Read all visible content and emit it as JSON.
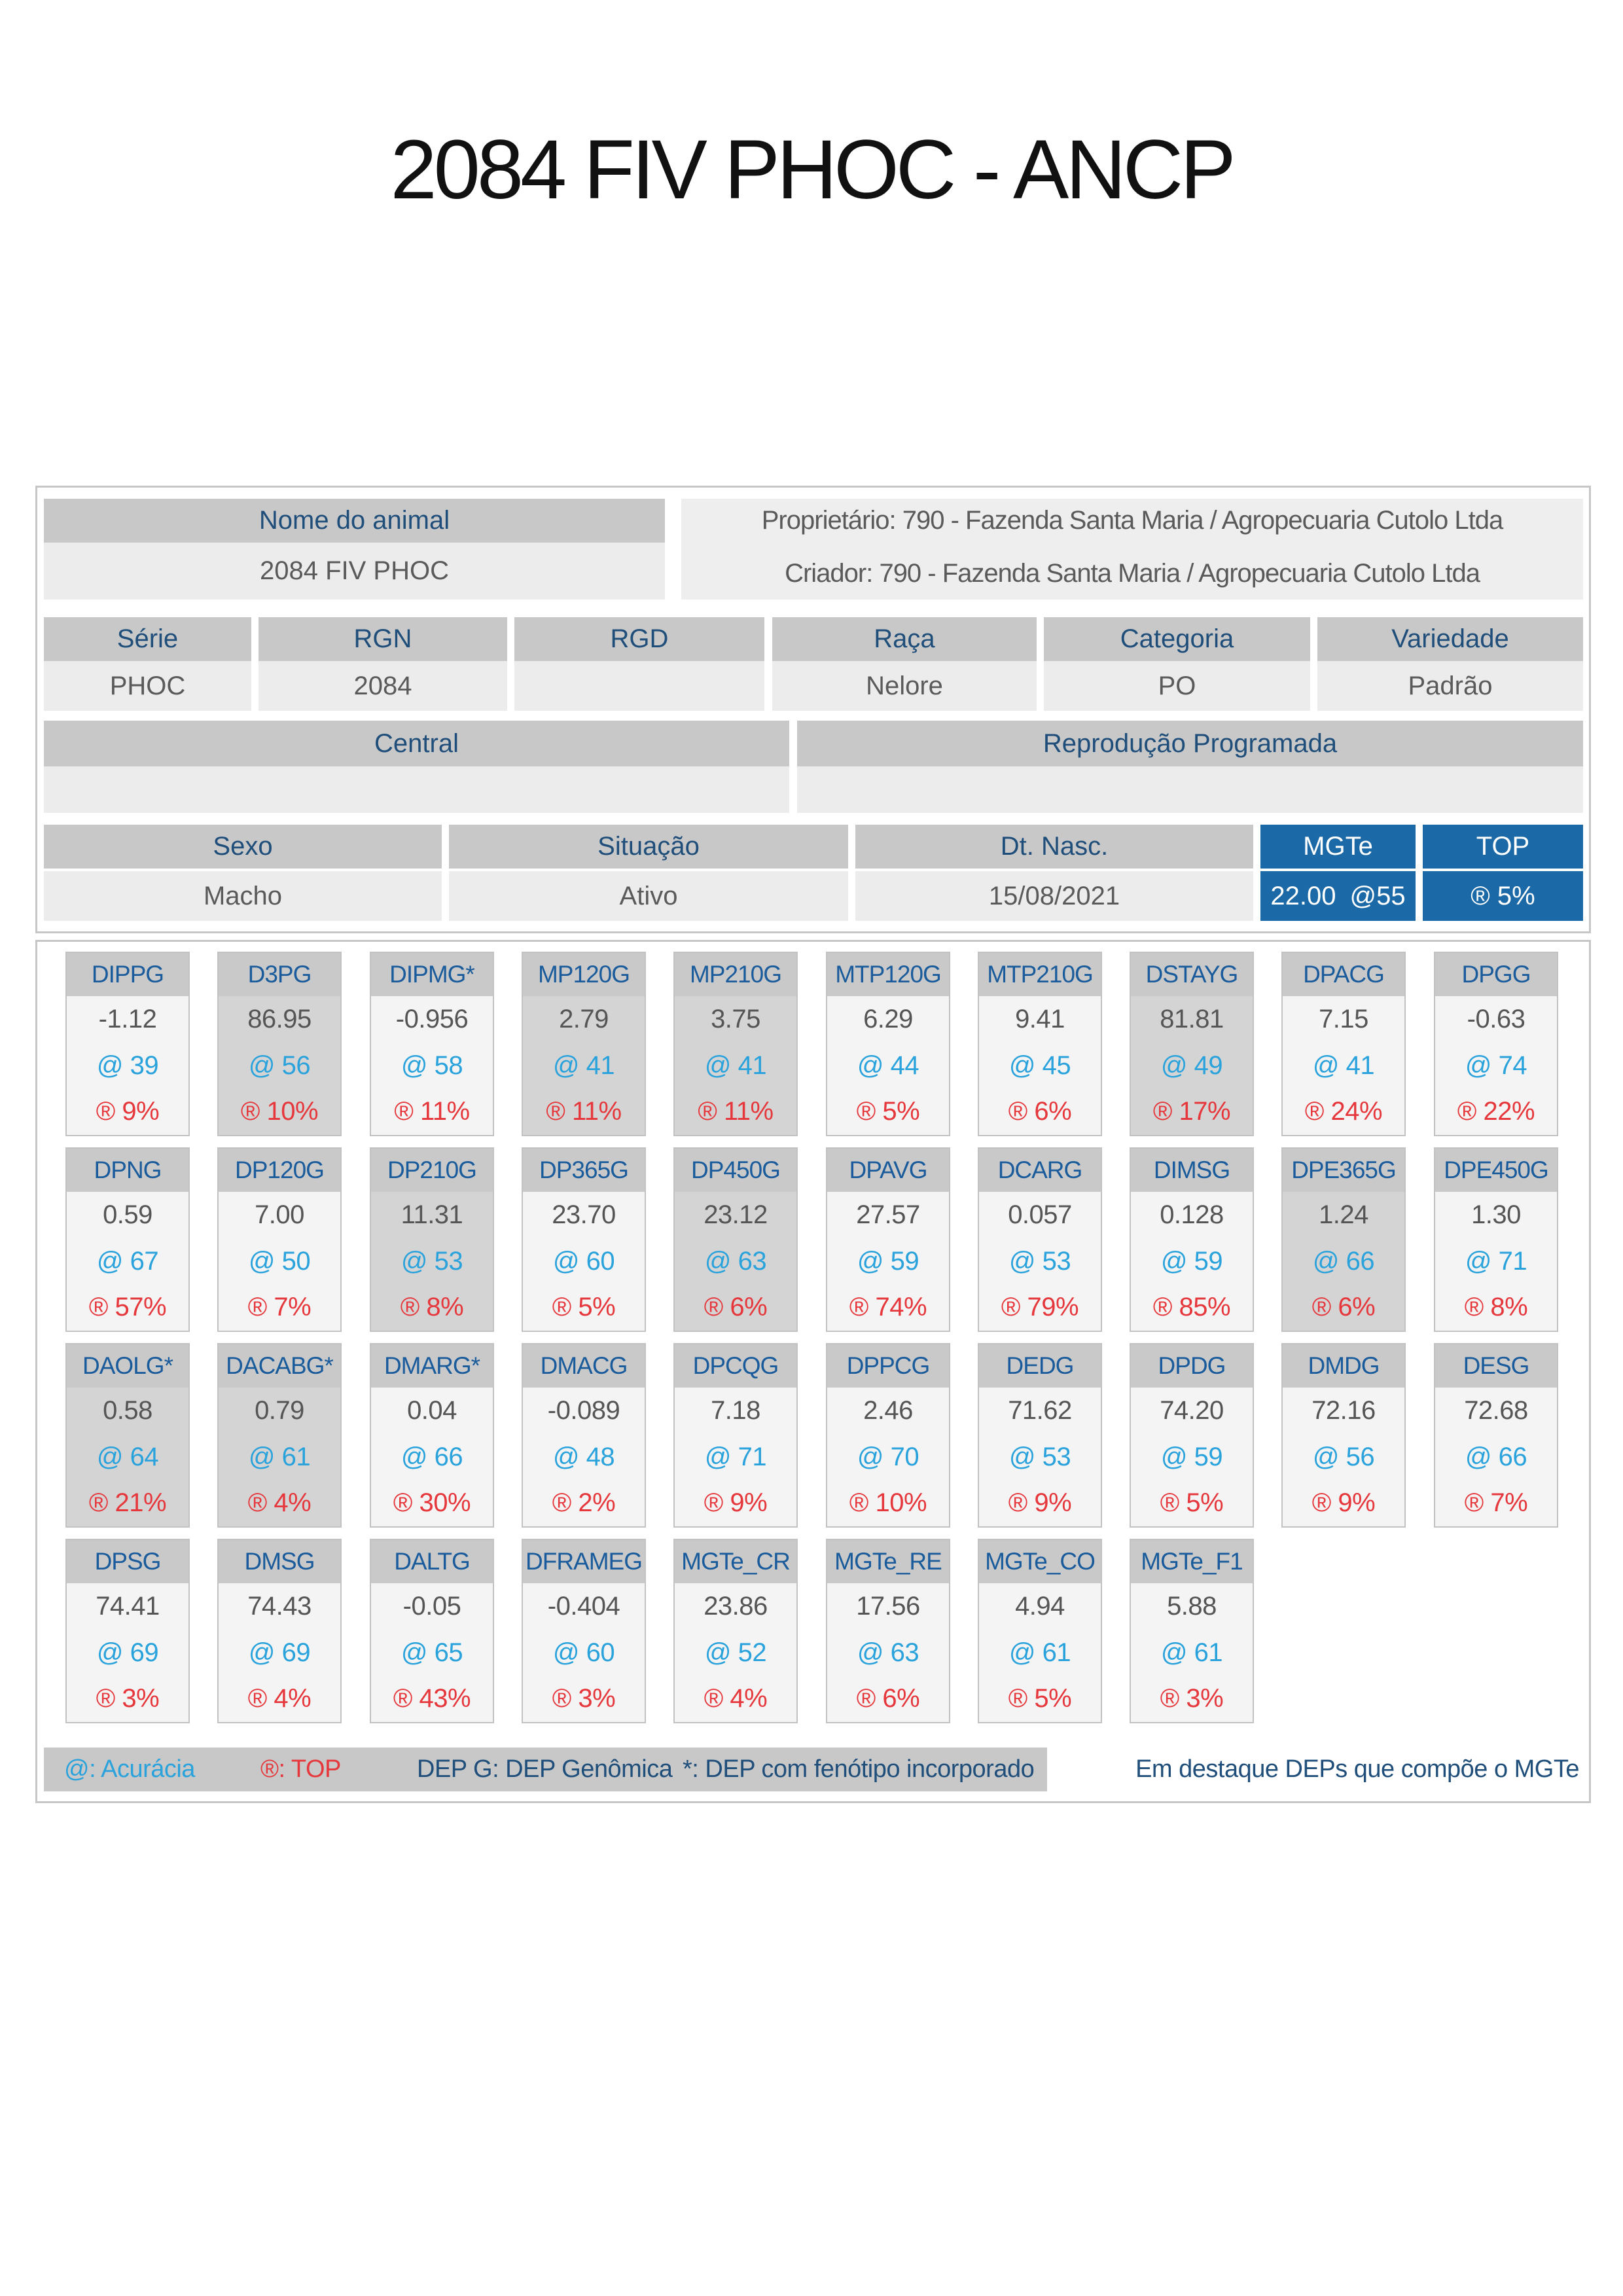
{
  "title": "2084 FIV PHOC - ANCP",
  "animal": {
    "name_label": "Nome do animal",
    "name": "2084 FIV PHOC",
    "owner": "Proprietário: 790 - Fazenda Santa Maria / Agropecuaria Cutolo Ltda",
    "breeder": "Criador: 790 - Fazenda Santa Maria / Agropecuaria Cutolo Ltda"
  },
  "info_row": [
    {
      "label": "Série",
      "value": "PHOC"
    },
    {
      "label": "RGN",
      "value": "2084"
    },
    {
      "label": "RGD"
    },
    {
      "label": "Raça",
      "value": "Nelore"
    },
    {
      "label": "Categoria",
      "value": "PO"
    },
    {
      "label": "Variedade",
      "value": "Padrão"
    }
  ],
  "program_row": [
    {
      "label": "Central"
    },
    {
      "label": "Reprodução Programada"
    }
  ],
  "status_row": [
    {
      "label": "Sexo",
      "value": "Macho"
    },
    {
      "label": "Situação",
      "value": "Ativo"
    },
    {
      "label": "Dt. Nasc.",
      "value": "15/08/2021"
    }
  ],
  "mgte": {
    "label": "MGTe",
    "value": "22.00 @55"
  },
  "top": {
    "label": "TOP",
    "value": "® 5%"
  },
  "colors": {
    "accent_blue": "#1b69a6",
    "accuracy": "#2aa2dc",
    "top_percent": "#e6383c",
    "label_navy": "#1f4e7a"
  },
  "deps": [
    {
      "name": "DIPPG",
      "value": "-1.12",
      "acc": "@ 39",
      "top": "® 9%",
      "highlight": false
    },
    {
      "name": "D3PG",
      "value": "86.95",
      "acc": "@ 56",
      "top": "® 10%",
      "highlight": true
    },
    {
      "name": "DIPMG*",
      "value": "-0.956",
      "acc": "@ 58",
      "top": "® 11%",
      "highlight": false
    },
    {
      "name": "MP120G",
      "value": "2.79",
      "acc": "@ 41",
      "top": "® 11%",
      "highlight": true
    },
    {
      "name": "MP210G",
      "value": "3.75",
      "acc": "@ 41",
      "top": "® 11%",
      "highlight": true
    },
    {
      "name": "MTP120G",
      "value": "6.29",
      "acc": "@ 44",
      "top": "® 5%",
      "highlight": false
    },
    {
      "name": "MTP210G",
      "value": "9.41",
      "acc": "@ 45",
      "top": "® 6%",
      "highlight": false
    },
    {
      "name": "DSTAYG",
      "value": "81.81",
      "acc": "@ 49",
      "top": "® 17%",
      "highlight": true
    },
    {
      "name": "DPACG",
      "value": "7.15",
      "acc": "@ 41",
      "top": "® 24%",
      "highlight": false
    },
    {
      "name": "DPGG",
      "value": "-0.63",
      "acc": "@ 74",
      "top": "® 22%",
      "highlight": false
    },
    {
      "name": "DPNG",
      "value": "0.59",
      "acc": "@ 67",
      "top": "® 57%",
      "highlight": false
    },
    {
      "name": "DP120G",
      "value": "7.00",
      "acc": "@ 50",
      "top": "® 7%",
      "highlight": false
    },
    {
      "name": "DP210G",
      "value": "11.31",
      "acc": "@ 53",
      "top": "® 8%",
      "highlight": true
    },
    {
      "name": "DP365G",
      "value": "23.70",
      "acc": "@ 60",
      "top": "® 5%",
      "highlight": false
    },
    {
      "name": "DP450G",
      "value": "23.12",
      "acc": "@ 63",
      "top": "® 6%",
      "highlight": true
    },
    {
      "name": "DPAVG",
      "value": "27.57",
      "acc": "@ 59",
      "top": "® 74%",
      "highlight": false
    },
    {
      "name": "DCARG",
      "value": "0.057",
      "acc": "@ 53",
      "top": "® 79%",
      "highlight": false
    },
    {
      "name": "DIMSG",
      "value": "0.128",
      "acc": "@ 59",
      "top": "® 85%",
      "highlight": false
    },
    {
      "name": "DPE365G",
      "value": "1.24",
      "acc": "@ 66",
      "top": "® 6%",
      "highlight": true
    },
    {
      "name": "DPE450G",
      "value": "1.30",
      "acc": "@ 71",
      "top": "® 8%",
      "highlight": false
    },
    {
      "name": "DAOLG*",
      "value": "0.58",
      "acc": "@ 64",
      "top": "® 21%",
      "highlight": true
    },
    {
      "name": "DACABG*",
      "value": "0.79",
      "acc": "@ 61",
      "top": "® 4%",
      "highlight": true
    },
    {
      "name": "DMARG*",
      "value": "0.04",
      "acc": "@ 66",
      "top": "® 30%",
      "highlight": false
    },
    {
      "name": "DMACG",
      "value": "-0.089",
      "acc": "@ 48",
      "top": "® 2%",
      "highlight": false
    },
    {
      "name": "DPCQG",
      "value": "7.18",
      "acc": "@ 71",
      "top": "® 9%",
      "highlight": false
    },
    {
      "name": "DPPCG",
      "value": "2.46",
      "acc": "@ 70",
      "top": "® 10%",
      "highlight": false
    },
    {
      "name": "DEDG",
      "value": "71.62",
      "acc": "@ 53",
      "top": "® 9%",
      "highlight": false
    },
    {
      "name": "DPDG",
      "value": "74.20",
      "acc": "@ 59",
      "top": "® 5%",
      "highlight": false
    },
    {
      "name": "DMDG",
      "value": "72.16",
      "acc": "@ 56",
      "top": "® 9%",
      "highlight": false
    },
    {
      "name": "DESG",
      "value": "72.68",
      "acc": "@ 66",
      "top": "® 7%",
      "highlight": false
    },
    {
      "name": "DPSG",
      "value": "74.41",
      "acc": "@ 69",
      "top": "® 3%",
      "highlight": false
    },
    {
      "name": "DMSG",
      "value": "74.43",
      "acc": "@ 69",
      "top": "® 4%",
      "highlight": false
    },
    {
      "name": "DALTG",
      "value": "-0.05",
      "acc": "@ 65",
      "top": "® 43%",
      "highlight": false
    },
    {
      "name": "DFRAMEG",
      "value": "-0.404",
      "acc": "@ 60",
      "top": "® 3%",
      "highlight": false
    },
    {
      "name": "MGTe_CR",
      "value": "23.86",
      "acc": "@ 52",
      "top": "® 4%",
      "highlight": false
    },
    {
      "name": "MGTe_RE",
      "value": "17.56",
      "acc": "@ 63",
      "top": "® 6%",
      "highlight": false
    },
    {
      "name": "MGTe_CO",
      "value": "4.94",
      "acc": "@ 61",
      "top": "® 5%",
      "highlight": false
    },
    {
      "name": "MGTe_F1",
      "value": "5.88",
      "acc": "@ 61",
      "top": "® 3%",
      "highlight": false
    }
  ],
  "legend": {
    "accuracy": "@: Acurácia",
    "top": "®: TOP",
    "genomic": "DEP G: DEP Genômica",
    "phenotype": "*: DEP com fenótipo incorporado",
    "highlight_note": "Em destaque DEPs que compõe o MGTe"
  }
}
